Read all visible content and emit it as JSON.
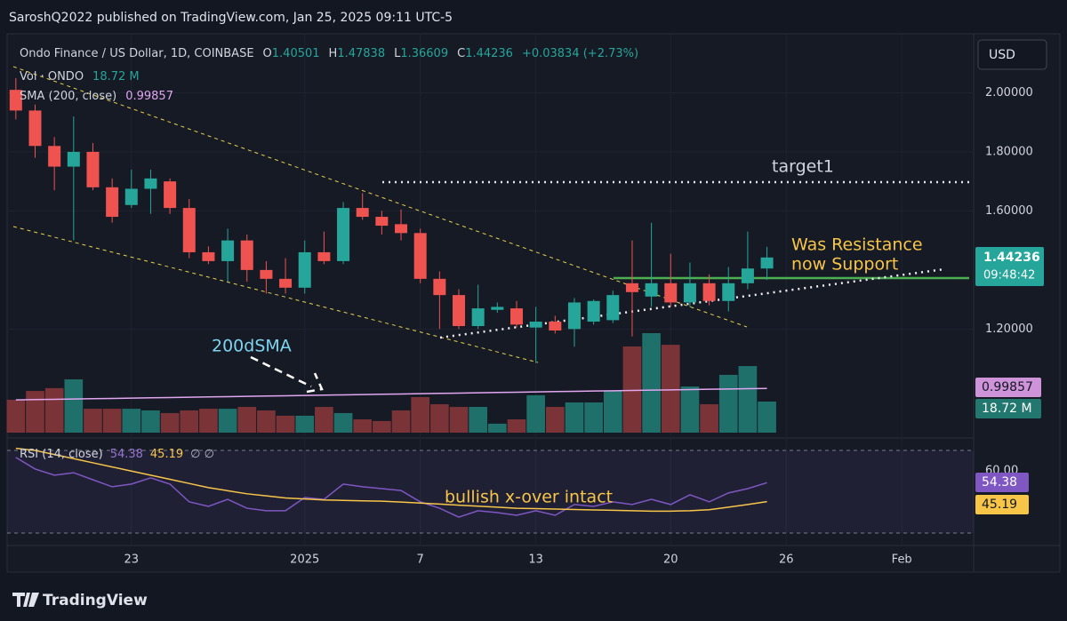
{
  "header": {
    "title": "SaroshQ2022 published on TradingView.com, Jan 25, 2025 09:11 UTC-5",
    "currency": "USD",
    "brand": "TradingView"
  },
  "legend": {
    "symbol": "Ondo Finance / US Dollar, 1D, COINBASE",
    "ohlc": [
      {
        "label": "O",
        "value": "1.40501"
      },
      {
        "label": "H",
        "value": "1.47838"
      },
      {
        "label": "L",
        "value": "1.36609"
      },
      {
        "label": "C",
        "value": "1.44236"
      }
    ],
    "change": "+0.03834 (+2.73%)",
    "vol_name": "Vol · ONDO",
    "vol_value": "18.72 M",
    "sma_name": "SMA (200, close)",
    "sma_value": "0.99857",
    "rsi_name": "RSI (14, close)",
    "rsi_value": "54.38",
    "rsi_ma_value": "45.19",
    "rsi_extra": "∅ ∅"
  },
  "price_axis_labels": {
    "last": "1.44236",
    "countdown": "09:48:42",
    "sma": "0.99857",
    "volume": "18.72 M",
    "rsi": "54.38",
    "rsi_ma": "45.19"
  },
  "annotations": [
    "target1",
    "Was Resistance",
    "now Support",
    "200dSMA",
    "bullish x-over intact"
  ],
  "chart_data": {
    "type": "candlestick",
    "up_color": "#26a69a",
    "down_color": "#ef5350",
    "open": [
      2.01,
      1.94,
      1.82,
      1.75,
      1.8,
      1.68,
      1.62,
      1.675,
      1.7,
      1.61,
      1.46,
      1.43,
      1.5,
      1.4,
      1.37,
      1.34,
      1.46,
      1.43,
      1.61,
      1.58,
      1.555,
      1.525,
      1.37,
      1.315,
      1.21,
      1.265,
      1.27,
      1.205,
      1.225,
      1.2,
      1.225,
      1.23,
      1.355,
      1.31,
      1.355,
      1.29,
      1.355,
      1.295,
      1.355,
      1.40501
    ],
    "high": [
      2.05,
      1.96,
      1.85,
      1.92,
      1.83,
      1.71,
      1.74,
      1.74,
      1.71,
      1.64,
      1.48,
      1.54,
      1.52,
      1.43,
      1.44,
      1.5,
      1.53,
      1.63,
      1.66,
      1.6,
      1.605,
      1.54,
      1.395,
      1.335,
      1.35,
      1.29,
      1.295,
      1.275,
      1.245,
      1.305,
      1.3,
      1.33,
      1.5,
      1.56,
      1.455,
      1.425,
      1.385,
      1.41,
      1.53,
      1.47838
    ],
    "low": [
      1.91,
      1.78,
      1.67,
      1.5,
      1.67,
      1.56,
      1.61,
      1.59,
      1.59,
      1.44,
      1.42,
      1.36,
      1.36,
      1.32,
      1.32,
      1.32,
      1.42,
      1.42,
      1.57,
      1.52,
      1.5,
      1.355,
      1.2,
      1.2,
      1.2,
      1.255,
      1.205,
      1.085,
      1.185,
      1.14,
      1.215,
      1.22,
      1.175,
      1.275,
      1.275,
      1.275,
      1.28,
      1.26,
      1.335,
      1.36609
    ],
    "close": [
      1.94,
      1.82,
      1.75,
      1.8,
      1.68,
      1.58,
      1.675,
      1.71,
      1.61,
      1.46,
      1.43,
      1.5,
      1.4,
      1.37,
      1.34,
      1.46,
      1.43,
      1.61,
      1.58,
      1.55,
      1.525,
      1.37,
      1.315,
      1.21,
      1.27,
      1.275,
      1.215,
      1.225,
      1.195,
      1.29,
      1.295,
      1.315,
      1.325,
      1.355,
      1.29,
      1.355,
      1.295,
      1.355,
      1.405,
      1.44236
    ],
    "volume": {
      "up_color": "#1f6f6a",
      "down_color": "#7a3336",
      "values": [
        19.8,
        25.1,
        26.8,
        32.1,
        14.4,
        14.4,
        14.4,
        13.4,
        11.8,
        13.4,
        14.4,
        14.4,
        15.5,
        13.4,
        10.2,
        10.2,
        15.5,
        11.8,
        8.0,
        7.0,
        13.4,
        21.4,
        17.1,
        15.5,
        15.5,
        5.4,
        8.0,
        22.5,
        15.5,
        18.2,
        18.2,
        25.1,
        51.9,
        59.9,
        52.9,
        27.8,
        17.1,
        34.8,
        40.1,
        18.72
      ]
    },
    "sma": {
      "color": "#e1a6f0",
      "values": [
        0.96,
        0.961,
        0.962,
        0.963,
        0.964,
        0.965,
        0.966,
        0.967,
        0.968,
        0.969,
        0.97,
        0.971,
        0.972,
        0.973,
        0.974,
        0.975,
        0.976,
        0.977,
        0.978,
        0.979,
        0.98,
        0.981,
        0.982,
        0.983,
        0.984,
        0.985,
        0.986,
        0.987,
        0.988,
        0.989,
        0.99,
        0.991,
        0.992,
        0.993,
        0.994,
        0.995,
        0.996,
        0.997,
        0.998,
        0.99857
      ]
    },
    "xlim": [
      -0.5,
      49.5
    ],
    "xticks": [
      {
        "value": 6,
        "label": "23"
      },
      {
        "value": 15,
        "label": "2025"
      },
      {
        "value": 21,
        "label": "7"
      },
      {
        "value": 27,
        "label": "13"
      },
      {
        "value": 34,
        "label": "20"
      },
      {
        "value": 40,
        "label": "26"
      },
      {
        "value": 46,
        "label": "Feb"
      }
    ],
    "ylim": [
      0.84,
      2.2
    ],
    "yticks": [
      {
        "value": 2,
        "label": "2.00000"
      },
      {
        "value": 1.8,
        "label": "1.80000"
      },
      {
        "value": 1.6,
        "label": "1.60000"
      },
      {
        "value": 1.2,
        "label": "1.20000"
      }
    ],
    "grid": true
  },
  "rsi": {
    "type": "line",
    "series": [
      {
        "color": "#7e57c2",
        "values": [
          66.6,
          61.0,
          58.0,
          59.2,
          55.8,
          52.4,
          53.7,
          56.7,
          53.7,
          45.1,
          42.9,
          46.3,
          42.0,
          40.8,
          40.8,
          47.2,
          46.3,
          53.7,
          52.4,
          51.5,
          50.6,
          45.1,
          42.0,
          37.7,
          40.8,
          39.9,
          38.6,
          40.8,
          38.6,
          43.8,
          42.9,
          45.1,
          43.8,
          46.3,
          43.8,
          48.5,
          45.1,
          49.4,
          51.5,
          54.38
        ]
      },
      {
        "color": "#f7c548",
        "values": [
          71,
          70,
          68,
          66,
          64,
          62,
          60,
          58,
          56,
          54,
          52,
          50.5,
          49,
          48,
          47,
          46.5,
          46,
          45.8,
          45.6,
          45.4,
          45,
          44.5,
          44,
          43.5,
          43,
          42.5,
          42,
          41.8,
          41.6,
          41.4,
          41.2,
          41,
          40.8,
          40.6,
          40.6,
          40.8,
          41.3,
          42.5,
          43.8,
          45.19
        ]
      }
    ],
    "bands": [
      30,
      70
    ],
    "ylim": [
      25,
      74.3
    ],
    "yticks": [
      {
        "value": 60,
        "label": "60.00"
      }
    ]
  }
}
